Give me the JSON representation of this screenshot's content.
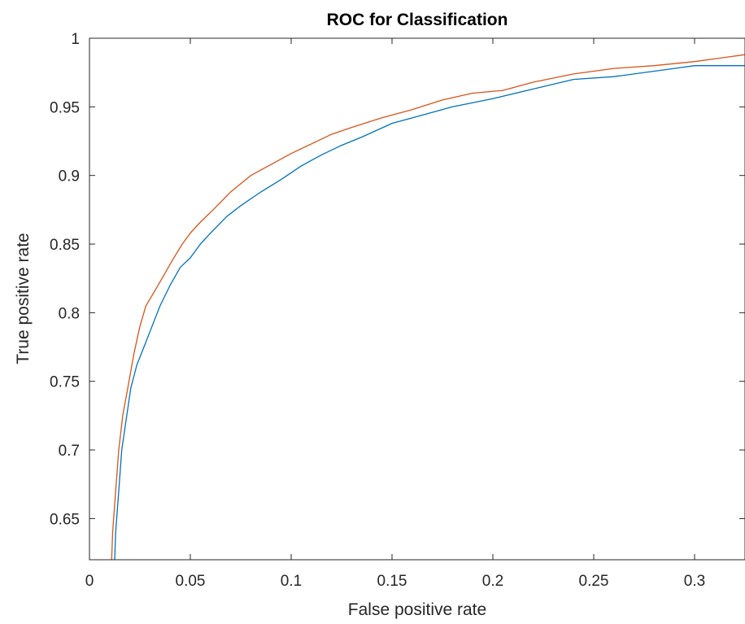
{
  "chart_data": {
    "type": "line",
    "title": "ROC for Classification",
    "xlabel": "False positive rate",
    "ylabel": "True positive rate",
    "xlim": [
      0,
      0.325
    ],
    "ylim": [
      0.62,
      1.0
    ],
    "xticks": [
      0,
      0.05,
      0.1,
      0.15,
      0.2,
      0.25,
      0.3
    ],
    "xtick_labels": [
      "0",
      "0.05",
      "0.1",
      "0.15",
      "0.2",
      "0.25",
      "0.3"
    ],
    "yticks": [
      0.65,
      0.7,
      0.75,
      0.8,
      0.85,
      0.9,
      0.95,
      1.0
    ],
    "ytick_labels": [
      "0.65",
      "0.7",
      "0.75",
      "0.8",
      "0.85",
      "0.9",
      "0.95",
      "1"
    ],
    "grid": false,
    "box": true,
    "series": [
      {
        "color": "#0072BD",
        "x": [
          0.0125,
          0.013,
          0.0145,
          0.016,
          0.018,
          0.0205,
          0.0235,
          0.027,
          0.031,
          0.035,
          0.04,
          0.045,
          0.05,
          0.055,
          0.06,
          0.068,
          0.075,
          0.085,
          0.095,
          0.105,
          0.115,
          0.125,
          0.135,
          0.15,
          0.165,
          0.18,
          0.2,
          0.22,
          0.24,
          0.26,
          0.28,
          0.29,
          0.3,
          0.325
        ],
        "y": [
          0.62,
          0.64,
          0.67,
          0.7,
          0.72,
          0.745,
          0.762,
          0.775,
          0.79,
          0.805,
          0.82,
          0.833,
          0.84,
          0.85,
          0.858,
          0.87,
          0.878,
          0.888,
          0.897,
          0.907,
          0.915,
          0.922,
          0.928,
          0.938,
          0.944,
          0.95,
          0.956,
          0.963,
          0.97,
          0.972,
          0.976,
          0.978,
          0.98,
          0.98
        ]
      },
      {
        "color": "#D95319",
        "x": [
          0.011,
          0.0115,
          0.013,
          0.0145,
          0.0165,
          0.019,
          0.022,
          0.025,
          0.028,
          0.032,
          0.036,
          0.041,
          0.046,
          0.05,
          0.055,
          0.062,
          0.07,
          0.08,
          0.09,
          0.1,
          0.11,
          0.12,
          0.13,
          0.145,
          0.16,
          0.175,
          0.19,
          0.205,
          0.22,
          0.24,
          0.26,
          0.28,
          0.3,
          0.325
        ],
        "y": [
          0.62,
          0.64,
          0.67,
          0.7,
          0.725,
          0.745,
          0.77,
          0.79,
          0.805,
          0.815,
          0.825,
          0.838,
          0.85,
          0.858,
          0.866,
          0.876,
          0.888,
          0.9,
          0.908,
          0.916,
          0.923,
          0.93,
          0.935,
          0.942,
          0.948,
          0.955,
          0.96,
          0.962,
          0.968,
          0.974,
          0.978,
          0.98,
          0.983,
          0.988
        ]
      }
    ]
  }
}
